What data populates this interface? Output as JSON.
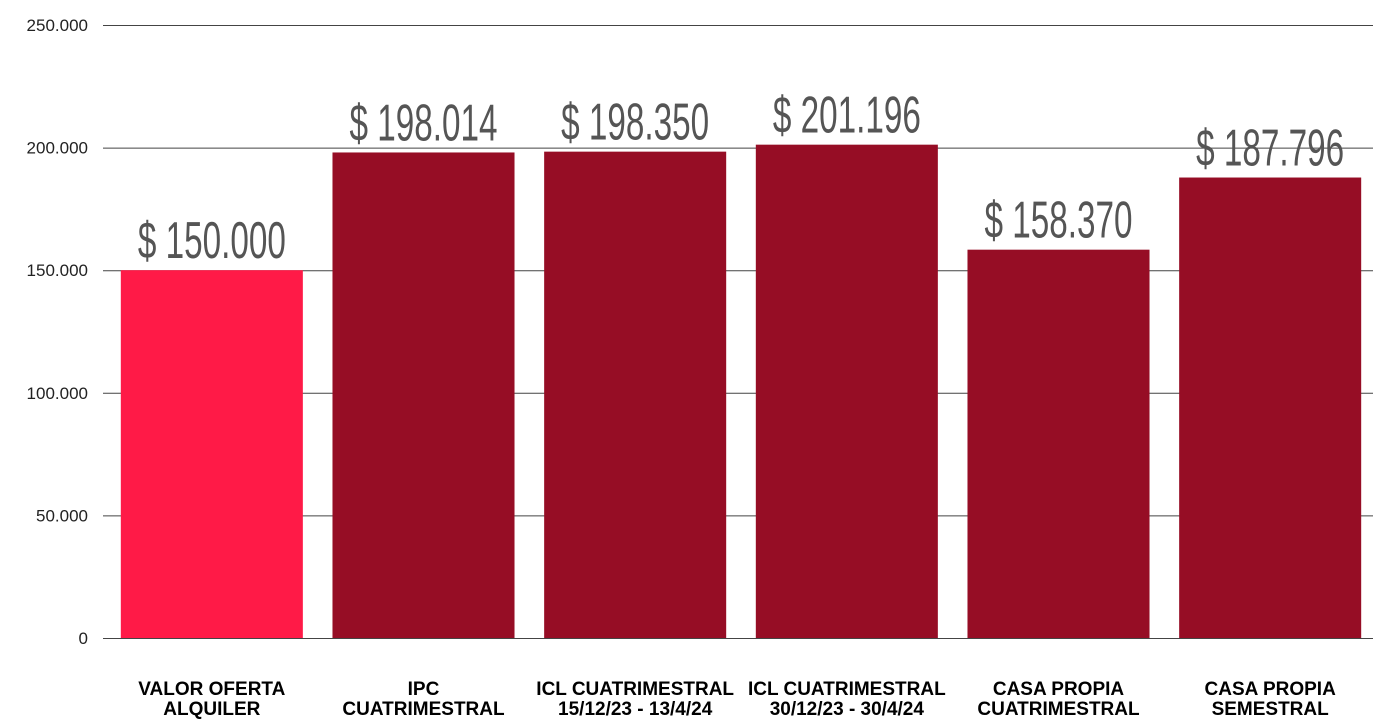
{
  "chart_data": {
    "type": "bar",
    "categories": [
      [
        "VALOR OFERTA",
        "ALQUILER"
      ],
      [
        "IPC",
        "CUATRIMESTRAL"
      ],
      [
        "ICL CUATRIMESTRAL",
        "15/12/23 - 13/4/24"
      ],
      [
        "ICL CUATRIMESTRAL",
        "30/12/23 - 30/4/24"
      ],
      [
        "CASA PROPIA",
        "CUATRIMESTRAL"
      ],
      [
        "CASA PROPIA",
        "SEMESTRAL"
      ]
    ],
    "values": [
      150000,
      198014,
      198350,
      201196,
      158370,
      187796
    ],
    "data_labels": [
      "$ 150.000",
      "$ 198.014",
      "$ 198.350",
      "$ 201.196",
      "$ 158.370",
      "$ 187.796"
    ],
    "yticks": [
      0,
      50000,
      100000,
      150000,
      200000,
      250000
    ],
    "ytick_labels": [
      "0",
      "50.000",
      "100.000",
      "150.000",
      "200.000",
      "250.000"
    ],
    "ylim": [
      0,
      250000
    ],
    "grid": true,
    "title": "",
    "xlabel": "",
    "ylabel": "",
    "colors": {
      "highlight": "#FF1A47",
      "bar": "#960D25",
      "grid": "#444444",
      "data_label": "#555555"
    }
  }
}
